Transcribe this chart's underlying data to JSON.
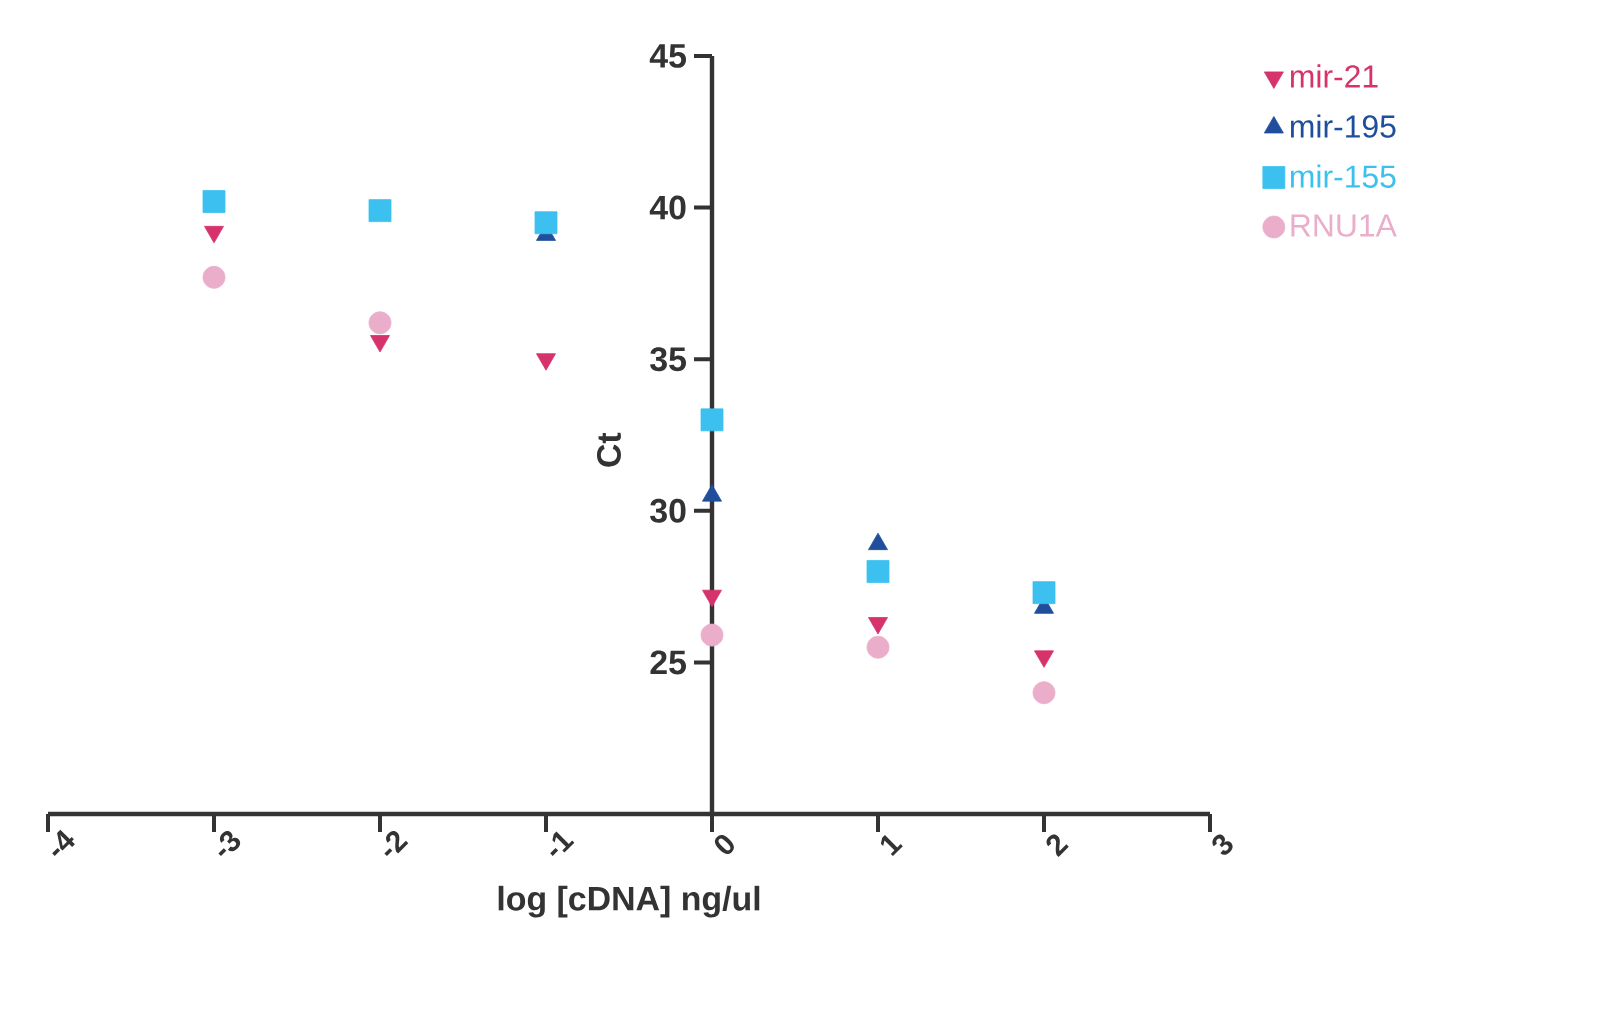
{
  "chart_data": {
    "type": "scatter",
    "xlabel": "log [cDNA] ng/ul",
    "ylabel": "Ct",
    "x": [
      -3,
      -2,
      -1,
      0,
      1,
      2
    ],
    "series": [
      {
        "name": "mir-21",
        "color": "#d6336c",
        "marker": "triangle-down",
        "values": [
          39.2,
          35.6,
          35.0,
          27.2,
          26.3,
          25.2
        ]
      },
      {
        "name": "mir-195",
        "color": "#1f4e9c",
        "marker": "triangle",
        "values": [
          null,
          null,
          39.1,
          30.5,
          28.9,
          26.8
        ]
      },
      {
        "name": "mir-155",
        "color": "#3cc0f0",
        "marker": "square",
        "values": [
          40.2,
          39.9,
          39.5,
          33.0,
          28.0,
          27.3
        ]
      },
      {
        "name": "RNU1A",
        "color": "#eaaecb",
        "marker": "circle",
        "values": [
          37.7,
          36.2,
          null,
          25.9,
          25.5,
          24.0
        ]
      }
    ],
    "xlim": [
      -4,
      3
    ],
    "ylim": [
      20,
      45
    ],
    "xticks": [
      -4,
      -3,
      -2,
      -1,
      0,
      1,
      2,
      3
    ],
    "yticks": [
      25,
      30,
      35,
      40,
      45
    ],
    "grid": false,
    "legend": "top right"
  }
}
